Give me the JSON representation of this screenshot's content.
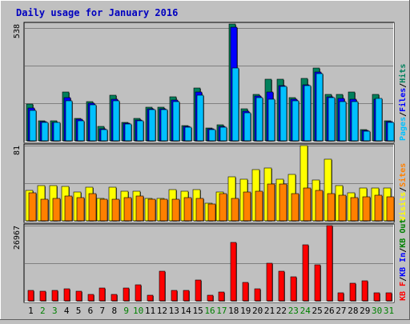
{
  "title": "Daily usage for January 2016",
  "colors": {
    "background": "#c0c0c0",
    "plot": "#c0c0c0",
    "grid": "#808080",
    "title": "#0000c0",
    "hits": "#00805c",
    "files": "#0000ff",
    "pages": "#00c0ff",
    "visits": "#ffff00",
    "sites": "#ff8000",
    "kbin": "#0000ff",
    "kbout": "#ff0000",
    "kbf": "#ff0000",
    "weekend": "#008000",
    "weekday": "#000000"
  },
  "chart_data": {
    "type": "bar",
    "title": "Daily usage for January 2016",
    "categories": [
      "1",
      "2",
      "3",
      "4",
      "5",
      "6",
      "7",
      "8",
      "9",
      "10",
      "11",
      "12",
      "13",
      "14",
      "15",
      "16",
      "17",
      "18",
      "19",
      "20",
      "21",
      "22",
      "23",
      "24",
      "25",
      "26",
      "27",
      "28",
      "29",
      "30",
      "31"
    ],
    "weekend_days": [
      "2",
      "3",
      "9",
      "10",
      "16",
      "17",
      "23",
      "24",
      "30",
      "31"
    ],
    "panels": [
      {
        "name": "hits-files-pages",
        "max_label": "538",
        "ymax": 538,
        "legend": [
          {
            "text": "Pages",
            "color": "#00c0ff"
          },
          {
            "text": "/",
            "color": "#000000"
          },
          {
            "text": "Files",
            "color": "#0000ff"
          },
          {
            "text": "/",
            "color": "#000000"
          },
          {
            "text": "Hits",
            "color": "#00805c"
          }
        ],
        "series": [
          {
            "name": "Hits",
            "values": [
              170,
              93,
              93,
              223,
              103,
              180,
              68,
              210,
              86,
              103,
              156,
              156,
              201,
              70,
              244,
              59,
              73,
              538,
              148,
              212,
              283,
              284,
              200,
              289,
              335,
              212,
              212,
              223,
              53,
              212,
              93
            ]
          },
          {
            "name": "Files",
            "values": [
              150,
              88,
              86,
              200,
              98,
              172,
              56,
              190,
              80,
              94,
              148,
              148,
              188,
              66,
              224,
              54,
              66,
              524,
              136,
              206,
              223,
              255,
              190,
              258,
              317,
              202,
              196,
              190,
              48,
              190,
              88
            ]
          },
          {
            "name": "Pages",
            "values": [
              140,
              86,
              84,
              185,
              93,
              165,
              52,
              185,
              76,
              93,
              145,
              144,
              180,
              62,
              210,
              52,
              62,
              335,
              130,
              200,
              190,
              250,
              186,
              255,
              310,
              200,
              180,
              180,
              46,
              194,
              86
            ]
          }
        ]
      },
      {
        "name": "visits-sites",
        "max_label": "81",
        "ymax": 81,
        "legend": [
          {
            "text": "Visits",
            "color": "#ffff00"
          },
          {
            "text": "/",
            "color": "#000000"
          },
          {
            "text": "Sites",
            "color": "#ff8000"
          }
        ],
        "series": [
          {
            "name": "Visits",
            "values": [
              33,
              38,
              38,
              37,
              31,
              36,
              24,
              36,
              32,
              32,
              24,
              24,
              34,
              32,
              34,
              19,
              31,
              47,
              45,
              55,
              57,
              45,
              50,
              81,
              44,
              66,
              38,
              30,
              35,
              35,
              35
            ]
          },
          {
            "name": "Sites",
            "values": [
              30,
              23,
              24,
              27,
              25,
              29,
              23,
              23,
              25,
              27,
              23,
              23,
              23,
              25,
              24,
              18,
              29,
              24,
              31,
              32,
              40,
              40,
              29,
              35,
              33,
              29,
              28,
              25,
              26,
              28,
              26
            ]
          }
        ]
      },
      {
        "name": "kbytes",
        "max_label": "26967",
        "ymax": 26967,
        "legend": [
          {
            "text": "KB F",
            "color": "#ff0000"
          },
          {
            "text": "/",
            "color": "#000000"
          },
          {
            "text": "KB In",
            "color": "#0000ff"
          },
          {
            "text": "/",
            "color": "#000000"
          },
          {
            "text": "KB Out",
            "color": "#008000"
          }
        ],
        "series": [
          {
            "name": "KB F",
            "values": [
              3600,
              3300,
              3600,
              4300,
              3300,
              2300,
              4700,
              2300,
              4700,
              5600,
              1900,
              10500,
              3700,
              3700,
              7600,
              2100,
              3200,
              21000,
              6500,
              4300,
              13500,
              10700,
              8600,
              20000,
              13000,
              26967,
              2900,
              6200,
              7300,
              2900,
              2900
            ]
          }
        ]
      }
    ]
  }
}
